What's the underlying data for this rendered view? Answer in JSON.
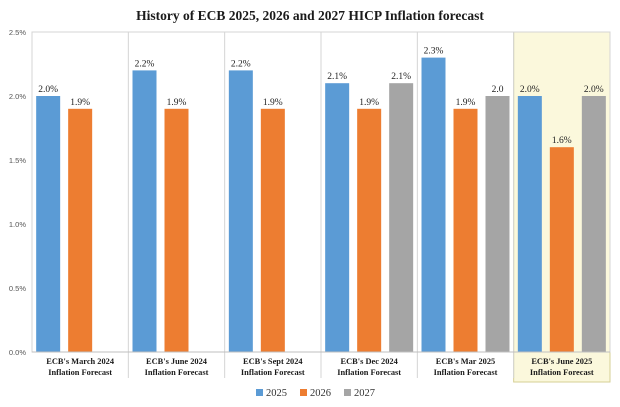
{
  "chart_data": {
    "type": "bar",
    "title": "History of ECB 2025, 2026 and 2027 HICP Inflation forecast",
    "categories": [
      [
        "ECB's March 2024",
        "Inflation Forecast"
      ],
      [
        "ECB's June 2024",
        "Inflation Forecast"
      ],
      [
        "ECB's Sept 2024",
        "Inflation Forecast"
      ],
      [
        "ECB's Dec 2024",
        "Inflation Forecast"
      ],
      [
        "ECB's Mar 2025",
        "Inflation Forecast"
      ],
      [
        "ECB's June 2025",
        "Inflation Forecast"
      ]
    ],
    "series": [
      {
        "name": "2025",
        "color": "#5b9bd5",
        "values": [
          2.0,
          2.2,
          2.2,
          2.1,
          2.3,
          2.0
        ],
        "labels": [
          "2.0%",
          "2.2%",
          "2.2%",
          "2.1%",
          "2.3%",
          "2.0%"
        ]
      },
      {
        "name": "2026",
        "color": "#ed7d31",
        "values": [
          1.9,
          1.9,
          1.9,
          1.9,
          1.9,
          1.6
        ],
        "labels": [
          "1.9%",
          "1.9%",
          "1.9%",
          "1.9%",
          "1.9%",
          "1.6%"
        ]
      },
      {
        "name": "2027",
        "color": "#a5a5a5",
        "values": [
          null,
          null,
          null,
          2.1,
          2.0,
          2.0
        ],
        "labels": [
          null,
          null,
          null,
          "2.1%",
          "2.0",
          "2.0%"
        ]
      }
    ],
    "yticks": [
      {
        "value": 0,
        "label": "0.0%"
      },
      {
        "value": 0.5,
        "label": "0.5%"
      },
      {
        "value": 1.0,
        "label": "1.0%"
      },
      {
        "value": 1.5,
        "label": "1.5%"
      },
      {
        "value": 2.0,
        "label": "2.0%"
      },
      {
        "value": 2.5,
        "label": "2.5%"
      }
    ],
    "ylim": [
      0,
      2.5
    ],
    "highlighted_category_index": 5,
    "highlight_color": "#fbf8dc",
    "grid": "vertical separators between groups",
    "legend_position": "bottom-center"
  }
}
